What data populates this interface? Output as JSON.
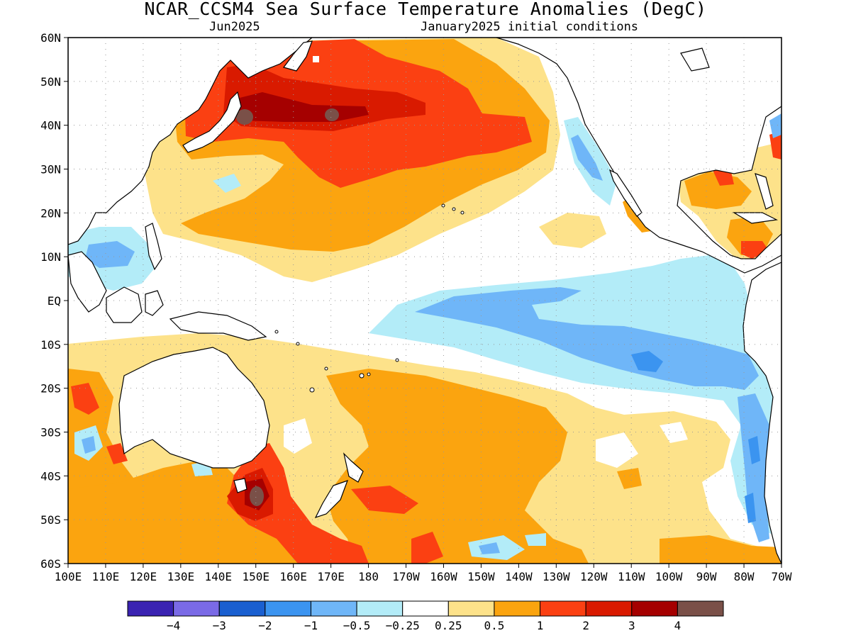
{
  "title": "NCAR_CCSM4 Sea Surface Temperature Anomalies (DegC)",
  "subtitle_left": "Jun2025",
  "subtitle_right": "January2025 initial conditions",
  "y_ticks": [
    "60N",
    "50N",
    "40N",
    "30N",
    "20N",
    "10N",
    "EQ",
    "10S",
    "20S",
    "30S",
    "40S",
    "50S",
    "60S"
  ],
  "x_ticks": [
    "100E",
    "110E",
    "120E",
    "130E",
    "140E",
    "150E",
    "160E",
    "170E",
    "180",
    "170W",
    "160W",
    "150W",
    "140W",
    "130W",
    "120W",
    "110W",
    "100W",
    "90W",
    "80W",
    "70W"
  ],
  "colorbar": {
    "colors": [
      "#3a23b2",
      "#7a6ae6",
      "#1a5fd0",
      "#3b94f0",
      "#6fb6f8",
      "#b3ecf8",
      "#ffffff",
      "#fde28a",
      "#fba40f",
      "#fb4012",
      "#d91a00",
      "#a50000",
      "#7a5048"
    ],
    "labels": [
      "-4",
      "-3",
      "-2",
      "-1",
      "-0.5",
      "-0.25",
      "0.25",
      "0.5",
      "1",
      "2",
      "3",
      "4"
    ]
  }
}
